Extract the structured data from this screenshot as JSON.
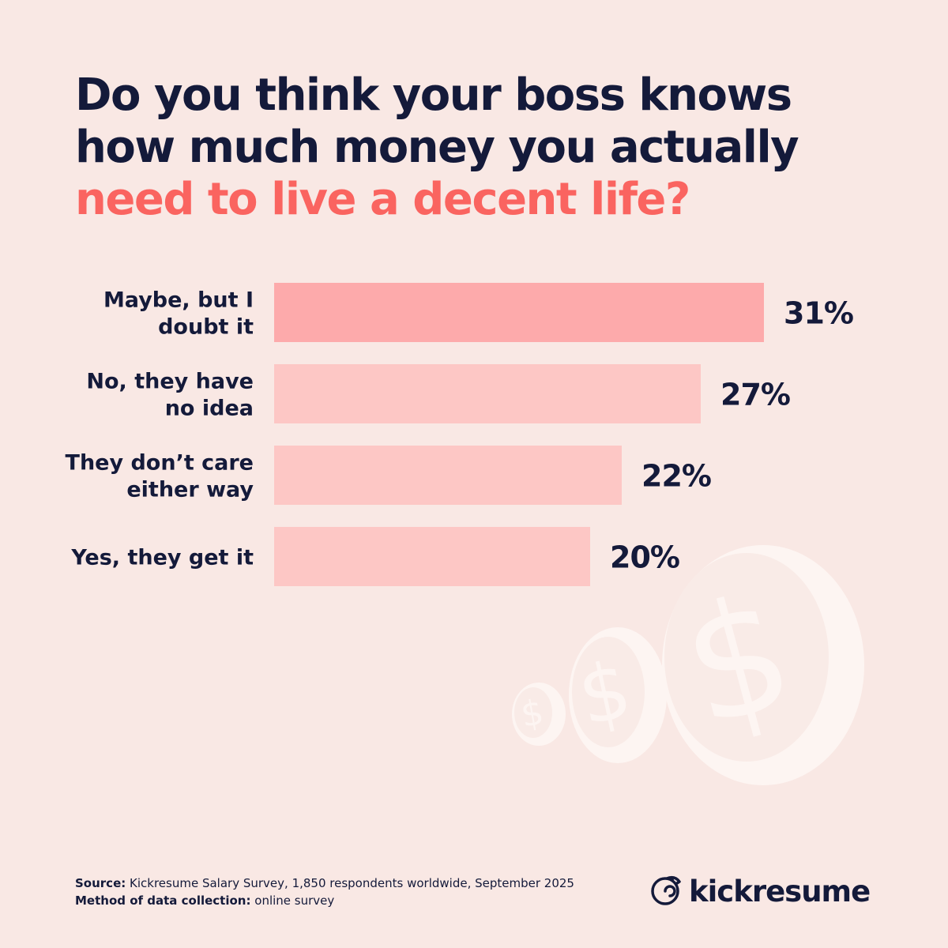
{
  "title": {
    "line1": "Do you think your boss knows",
    "line2": "how much money you actually",
    "line3": "need to live a decent life?"
  },
  "colors": {
    "background": "#f9e8e4",
    "text": "#141a3a",
    "accent": "#fa6460",
    "bar_highlight": "#fdaaab",
    "bar": "#fdc7c5",
    "coin": "#fdf5f2"
  },
  "chart_data": {
    "type": "bar",
    "orientation": "horizontal",
    "categories": [
      "Maybe, but I doubt it",
      "No, they have no idea",
      "They don’t care either way",
      "Yes, they get it"
    ],
    "category_lines": [
      [
        "Maybe, but I",
        "doubt it"
      ],
      [
        "No, they have",
        "no idea"
      ],
      [
        "They don’t care",
        "either way"
      ],
      [
        "Yes, they get it"
      ]
    ],
    "values": [
      31,
      27,
      22,
      20
    ],
    "value_labels": [
      "31%",
      "27%",
      "22%",
      "20%"
    ],
    "unit": "%",
    "grid": false,
    "legend": "none"
  },
  "footer": {
    "source_label": "Source:",
    "source_text": "Kickresume Salary Survey, 1,850 respondents worldwide, September 2025",
    "method_label": "Method of data collection:",
    "method_text": "online survey"
  },
  "brand": {
    "name": "kickresume",
    "icon": "chameleon-logo-icon"
  },
  "decoration": {
    "icon": "dollar-coins-icon"
  }
}
